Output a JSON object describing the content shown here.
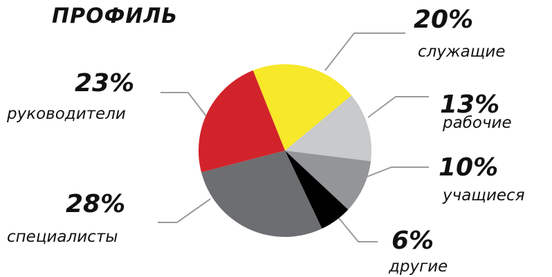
{
  "chart_data": {
    "type": "pie",
    "title": "ПРОФИЛЬ",
    "slices": [
      {
        "label": "служащие",
        "value": 20,
        "percent_label": "20%",
        "color": "#F7E82A"
      },
      {
        "label": "рабочие",
        "value": 13,
        "percent_label": "13%",
        "color": "#C9CACC"
      },
      {
        "label": "учащиеся",
        "value": 10,
        "percent_label": "10%",
        "color": "#939598"
      },
      {
        "label": "другие",
        "value": 6,
        "percent_label": "6%",
        "color": "#000000"
      },
      {
        "label": "специалисты",
        "value": 28,
        "percent_label": "28%",
        "color": "#6D6E71"
      },
      {
        "label": "руководители",
        "value": 23,
        "percent_label": "23%",
        "color": "#D2232A"
      }
    ]
  }
}
